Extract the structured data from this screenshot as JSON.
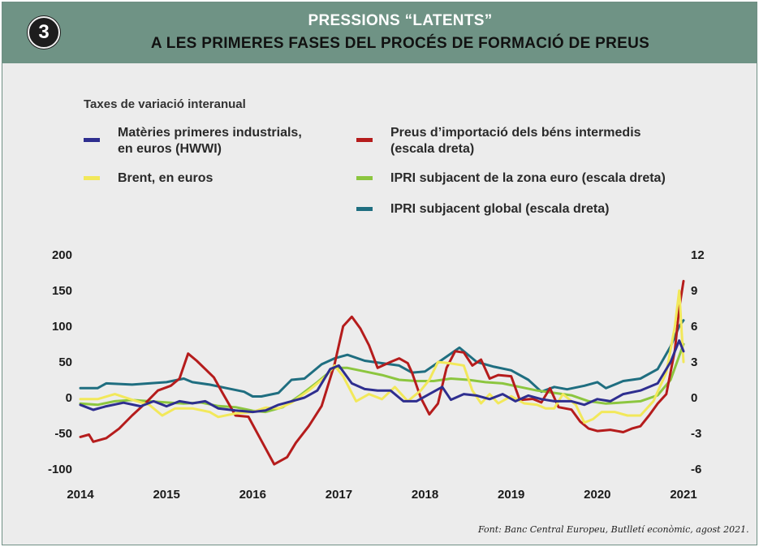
{
  "header": {
    "badge": "3",
    "title_line1": "PRESSIONS “LATENTS”",
    "title_line2": "A LES PRIMERES FASES DEL PROCÉS DE FORMACIÓ DE PREUS"
  },
  "source": "Font: Banc Central Europeu, Butlletí econòmic, agost 2021.",
  "colors": {
    "header_bg": "#6f9385",
    "hwwi": "#2e2e8f",
    "brent": "#f2e85a",
    "import": "#b51c1c",
    "ipri_euro": "#8cc63f",
    "ipri_global": "#1f6e80"
  },
  "chart_data": {
    "type": "line",
    "subtitle": "Taxes de variació interanual",
    "x_tick_labels": [
      "2014",
      "2015",
      "2016",
      "2017",
      "2018",
      "2019",
      "2020",
      "2021"
    ],
    "xlim": [
      2014.0,
      2021.0
    ],
    "y_left": {
      "ticks": [
        "200",
        "150",
        "100",
        "50",
        "0",
        "-50",
        "-100"
      ],
      "ylim": [
        -100,
        200
      ]
    },
    "y_right": {
      "ticks": [
        "12",
        "9",
        "6",
        "3",
        "0",
        "-3",
        "-6"
      ],
      "ylim": [
        -6,
        12
      ]
    },
    "grid": false,
    "legend": [
      {
        "key": "hwwi",
        "label_lines": [
          "Matèries primeres industrials,",
          "en euros (HWWI)"
        ]
      },
      {
        "key": "import",
        "label_lines": [
          "Preus d’importació dels béns intermedis",
          "(escala dreta)"
        ]
      },
      {
        "key": "brent",
        "label_lines": [
          "Brent, en euros"
        ]
      },
      {
        "key": "ipri_euro",
        "label_lines": [
          "IPRI subjacent de la zona euro (escala dreta)"
        ]
      },
      {
        "key": "ipri_global",
        "label_lines": [
          "IPRI subjacent global (escala dreta)"
        ]
      }
    ],
    "series": [
      {
        "key": "ipri_global",
        "axis": "right",
        "points": [
          [
            2014.0,
            0.8
          ],
          [
            2014.2,
            0.8
          ],
          [
            2014.3,
            1.2
          ],
          [
            2014.6,
            1.1
          ],
          [
            2014.8,
            1.2
          ],
          [
            2015.0,
            1.3
          ],
          [
            2015.2,
            1.6
          ],
          [
            2015.3,
            1.3
          ],
          [
            2015.5,
            1.1
          ],
          [
            2015.7,
            0.8
          ],
          [
            2015.9,
            0.5
          ],
          [
            2016.0,
            0.1
          ],
          [
            2016.1,
            0.1
          ],
          [
            2016.3,
            0.4
          ],
          [
            2016.45,
            1.5
          ],
          [
            2016.6,
            1.6
          ],
          [
            2016.8,
            2.8
          ],
          [
            2016.95,
            3.3
          ],
          [
            2017.1,
            3.6
          ],
          [
            2017.3,
            3.1
          ],
          [
            2017.5,
            2.9
          ],
          [
            2017.7,
            2.7
          ],
          [
            2017.85,
            2.1
          ],
          [
            2018.0,
            2.2
          ],
          [
            2018.2,
            3.2
          ],
          [
            2018.4,
            4.2
          ],
          [
            2018.6,
            3.0
          ],
          [
            2018.8,
            2.6
          ],
          [
            2019.0,
            2.3
          ],
          [
            2019.2,
            1.5
          ],
          [
            2019.35,
            0.5
          ],
          [
            2019.5,
            0.9
          ],
          [
            2019.65,
            0.7
          ],
          [
            2019.85,
            1.0
          ],
          [
            2020.0,
            1.3
          ],
          [
            2020.1,
            0.8
          ],
          [
            2020.3,
            1.4
          ],
          [
            2020.5,
            1.6
          ],
          [
            2020.7,
            2.4
          ],
          [
            2020.85,
            4.3
          ],
          [
            2020.95,
            6.0
          ],
          [
            2021.0,
            6.5
          ]
        ]
      },
      {
        "key": "ipri_euro",
        "axis": "right",
        "points": [
          [
            2014.0,
            -0.5
          ],
          [
            2014.2,
            -0.6
          ],
          [
            2014.4,
            -0.3
          ],
          [
            2014.6,
            -0.2
          ],
          [
            2014.8,
            -0.3
          ],
          [
            2015.0,
            -0.4
          ],
          [
            2015.2,
            -0.5
          ],
          [
            2015.4,
            -0.4
          ],
          [
            2015.6,
            -0.7
          ],
          [
            2015.8,
            -0.8
          ],
          [
            2016.0,
            -1.1
          ],
          [
            2016.15,
            -1.2
          ],
          [
            2016.35,
            -0.8
          ],
          [
            2016.55,
            0.2
          ],
          [
            2016.75,
            1.3
          ],
          [
            2016.95,
            2.5
          ],
          [
            2017.1,
            2.5
          ],
          [
            2017.3,
            2.2
          ],
          [
            2017.5,
            1.9
          ],
          [
            2017.7,
            1.5
          ],
          [
            2017.9,
            1.4
          ],
          [
            2018.1,
            1.4
          ],
          [
            2018.3,
            1.6
          ],
          [
            2018.5,
            1.5
          ],
          [
            2018.7,
            1.3
          ],
          [
            2018.9,
            1.2
          ],
          [
            2019.1,
            0.9
          ],
          [
            2019.3,
            0.6
          ],
          [
            2019.5,
            0.4
          ],
          [
            2019.7,
            0.2
          ],
          [
            2019.9,
            -0.3
          ],
          [
            2020.1,
            -0.5
          ],
          [
            2020.3,
            -0.4
          ],
          [
            2020.5,
            -0.3
          ],
          [
            2020.7,
            0.2
          ],
          [
            2020.85,
            1.5
          ],
          [
            2021.0,
            4.5
          ]
        ]
      },
      {
        "key": "import",
        "axis": "right",
        "points": [
          [
            2014.0,
            -3.3
          ],
          [
            2014.1,
            -3.1
          ],
          [
            2014.15,
            -3.7
          ],
          [
            2014.3,
            -3.4
          ],
          [
            2014.45,
            -2.6
          ],
          [
            2014.6,
            -1.5
          ],
          [
            2014.75,
            -0.5
          ],
          [
            2014.9,
            0.6
          ],
          [
            2015.05,
            1.0
          ],
          [
            2015.15,
            1.6
          ],
          [
            2015.25,
            3.7
          ],
          [
            2015.35,
            3.1
          ],
          [
            2015.55,
            1.7
          ],
          [
            2015.65,
            0.4
          ],
          [
            2015.8,
            -1.5
          ],
          [
            2015.95,
            -1.6
          ],
          [
            2016.1,
            -3.6
          ],
          [
            2016.25,
            -5.6
          ],
          [
            2016.4,
            -5.0
          ],
          [
            2016.5,
            -3.8
          ],
          [
            2016.65,
            -2.4
          ],
          [
            2016.8,
            -0.7
          ],
          [
            2016.95,
            2.8
          ],
          [
            2017.05,
            6.0
          ],
          [
            2017.15,
            6.8
          ],
          [
            2017.25,
            5.8
          ],
          [
            2017.35,
            4.4
          ],
          [
            2017.45,
            2.5
          ],
          [
            2017.6,
            3.0
          ],
          [
            2017.7,
            3.3
          ],
          [
            2017.8,
            2.9
          ],
          [
            2017.85,
            2.1
          ],
          [
            2017.95,
            0.0
          ],
          [
            2018.05,
            -1.4
          ],
          [
            2018.15,
            -0.5
          ],
          [
            2018.25,
            2.5
          ],
          [
            2018.35,
            3.9
          ],
          [
            2018.45,
            3.8
          ],
          [
            2018.55,
            2.7
          ],
          [
            2018.65,
            3.2
          ],
          [
            2018.75,
            1.6
          ],
          [
            2018.85,
            1.9
          ],
          [
            2019.0,
            1.8
          ],
          [
            2019.1,
            -0.2
          ],
          [
            2019.25,
            -0.1
          ],
          [
            2019.35,
            -0.4
          ],
          [
            2019.45,
            0.8
          ],
          [
            2019.55,
            -0.8
          ],
          [
            2019.7,
            -1.0
          ],
          [
            2019.8,
            -2.0
          ],
          [
            2019.9,
            -2.6
          ],
          [
            2020.0,
            -2.8
          ],
          [
            2020.15,
            -2.7
          ],
          [
            2020.3,
            -2.9
          ],
          [
            2020.4,
            -2.6
          ],
          [
            2020.5,
            -2.4
          ],
          [
            2020.6,
            -1.5
          ],
          [
            2020.7,
            -0.5
          ],
          [
            2020.8,
            0.3
          ],
          [
            2020.9,
            4.0
          ],
          [
            2020.95,
            7.5
          ],
          [
            2021.0,
            9.8
          ]
        ]
      },
      {
        "key": "brent",
        "axis": "left",
        "points": [
          [
            2014.0,
            -2
          ],
          [
            2014.2,
            -2
          ],
          [
            2014.4,
            5
          ],
          [
            2014.6,
            -3
          ],
          [
            2014.8,
            -10
          ],
          [
            2014.95,
            -25
          ],
          [
            2015.1,
            -15
          ],
          [
            2015.3,
            -15
          ],
          [
            2015.5,
            -20
          ],
          [
            2015.6,
            -27
          ],
          [
            2015.8,
            -22
          ],
          [
            2016.0,
            -20
          ],
          [
            2016.15,
            -14
          ],
          [
            2016.3,
            -15
          ],
          [
            2016.45,
            -7
          ],
          [
            2016.65,
            10
          ],
          [
            2016.85,
            30
          ],
          [
            2016.95,
            45
          ],
          [
            2017.05,
            30
          ],
          [
            2017.2,
            -5
          ],
          [
            2017.35,
            5
          ],
          [
            2017.5,
            -2
          ],
          [
            2017.65,
            15
          ],
          [
            2017.8,
            -5
          ],
          [
            2017.95,
            10
          ],
          [
            2018.05,
            25
          ],
          [
            2018.15,
            50
          ],
          [
            2018.3,
            48
          ],
          [
            2018.45,
            45
          ],
          [
            2018.55,
            10
          ],
          [
            2018.65,
            -8
          ],
          [
            2018.75,
            5
          ],
          [
            2018.85,
            -8
          ],
          [
            2019.0,
            2
          ],
          [
            2019.15,
            -8
          ],
          [
            2019.3,
            -10
          ],
          [
            2019.4,
            -15
          ],
          [
            2019.5,
            -15
          ],
          [
            2019.6,
            5
          ],
          [
            2019.75,
            -10
          ],
          [
            2019.85,
            -35
          ],
          [
            2019.95,
            -30
          ],
          [
            2020.05,
            -20
          ],
          [
            2020.2,
            -20
          ],
          [
            2020.35,
            -25
          ],
          [
            2020.5,
            -25
          ],
          [
            2020.65,
            -5
          ],
          [
            2020.8,
            35
          ],
          [
            2020.9,
            100
          ],
          [
            2020.95,
            150
          ],
          [
            2021.0,
            50
          ]
        ]
      },
      {
        "key": "hwwi",
        "axis": "left",
        "points": [
          [
            2014.0,
            -10
          ],
          [
            2014.15,
            -17
          ],
          [
            2014.3,
            -12
          ],
          [
            2014.5,
            -7
          ],
          [
            2014.7,
            -12
          ],
          [
            2014.85,
            -5
          ],
          [
            2015.0,
            -12
          ],
          [
            2015.15,
            -5
          ],
          [
            2015.3,
            -8
          ],
          [
            2015.45,
            -5
          ],
          [
            2015.6,
            -15
          ],
          [
            2015.8,
            -18
          ],
          [
            2016.0,
            -20
          ],
          [
            2016.15,
            -18
          ],
          [
            2016.3,
            -10
          ],
          [
            2016.45,
            -5
          ],
          [
            2016.6,
            0
          ],
          [
            2016.75,
            10
          ],
          [
            2016.9,
            40
          ],
          [
            2017.0,
            45
          ],
          [
            2017.15,
            20
          ],
          [
            2017.3,
            12
          ],
          [
            2017.45,
            10
          ],
          [
            2017.6,
            10
          ],
          [
            2017.75,
            -5
          ],
          [
            2017.9,
            -5
          ],
          [
            2018.05,
            5
          ],
          [
            2018.2,
            15
          ],
          [
            2018.3,
            -3
          ],
          [
            2018.45,
            5
          ],
          [
            2018.6,
            3
          ],
          [
            2018.75,
            -2
          ],
          [
            2018.9,
            5
          ],
          [
            2019.05,
            -5
          ],
          [
            2019.2,
            3
          ],
          [
            2019.35,
            -2
          ],
          [
            2019.5,
            -5
          ],
          [
            2019.7,
            -5
          ],
          [
            2019.85,
            -10
          ],
          [
            2020.0,
            -2
          ],
          [
            2020.15,
            -5
          ],
          [
            2020.3,
            5
          ],
          [
            2020.5,
            10
          ],
          [
            2020.7,
            20
          ],
          [
            2020.85,
            50
          ],
          [
            2020.95,
            80
          ],
          [
            2021.0,
            65
          ]
        ]
      }
    ]
  }
}
